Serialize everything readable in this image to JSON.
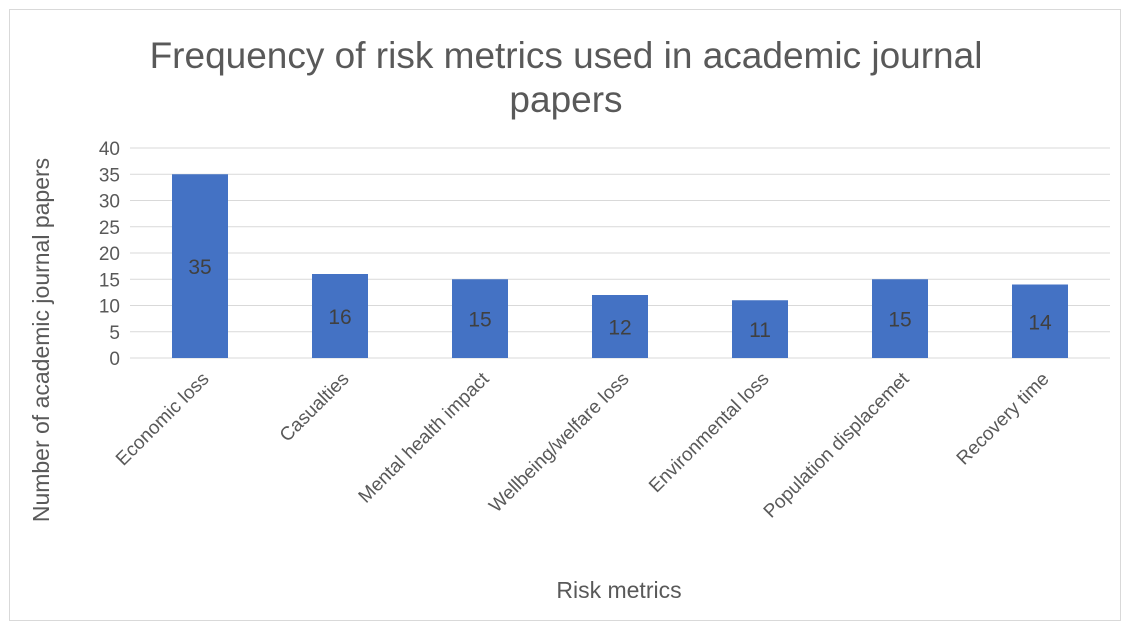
{
  "chart_data": {
    "type": "bar",
    "title": "Frequency of risk metrics used in academic journal papers",
    "xlabel": "Risk metrics",
    "ylabel": "Number of academic journal papers",
    "categories": [
      "Economic loss",
      "Casualties",
      "Mental health impact",
      "Wellbeing/welfare loss",
      "Environmental loss",
      "Population displacemet",
      "Recovery time"
    ],
    "values": [
      35,
      16,
      15,
      12,
      11,
      15,
      14
    ],
    "ylim": [
      0,
      40
    ],
    "yticks": [
      0,
      5,
      10,
      15,
      20,
      25,
      30,
      35,
      40
    ],
    "grid": true,
    "data_labels": true,
    "legend": "none",
    "bar_color": "#4472c4",
    "grid_color": "#d9d9d9"
  }
}
